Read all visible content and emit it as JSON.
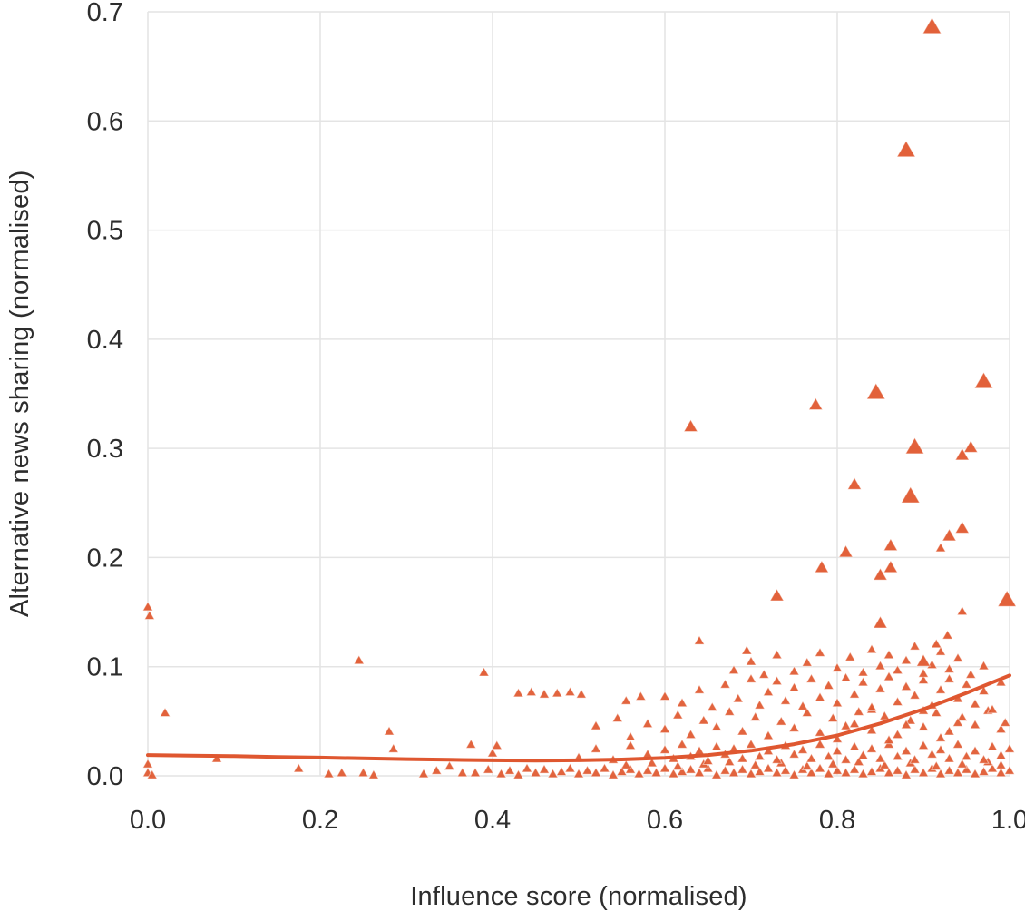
{
  "chart_data": {
    "type": "scatter",
    "title": "",
    "xlabel": "Influence score (normalised)",
    "ylabel": "Alternative news sharing (normalised)",
    "xlim": [
      0,
      1
    ],
    "ylim": [
      0,
      0.7
    ],
    "xticks": [
      0,
      0.2,
      0.4,
      0.6,
      0.8,
      1
    ],
    "xtick_labels": [
      "0.0",
      "0.2",
      "0.4",
      "0.6",
      "0.8",
      "1.0"
    ],
    "yticks": [
      0,
      0.1,
      0.2,
      0.3,
      0.4,
      0.5,
      0.6,
      0.7
    ],
    "ytick_labels": [
      "0.0",
      "0.1",
      "0.2",
      "0.3",
      "0.4",
      "0.5",
      "0.6",
      "0.7"
    ],
    "grid": true,
    "legend": false,
    "marker": "triangle-up",
    "colors": {
      "point": "#e0582f",
      "trend": "#df5730",
      "grid": "#e4e4e4",
      "text": "#2d2d2d",
      "background": "#ffffff"
    },
    "trend_line": {
      "points": [
        [
          0,
          0.019
        ],
        [
          0.05,
          0.0185
        ],
        [
          0.1,
          0.018
        ],
        [
          0.15,
          0.0173
        ],
        [
          0.2,
          0.0167
        ],
        [
          0.25,
          0.016
        ],
        [
          0.3,
          0.0153
        ],
        [
          0.35,
          0.0147
        ],
        [
          0.4,
          0.0142
        ],
        [
          0.45,
          0.014
        ],
        [
          0.5,
          0.0142
        ],
        [
          0.55,
          0.015
        ],
        [
          0.6,
          0.0165
        ],
        [
          0.65,
          0.019
        ],
        [
          0.7,
          0.023
        ],
        [
          0.75,
          0.029
        ],
        [
          0.8,
          0.037
        ],
        [
          0.85,
          0.048
        ],
        [
          0.9,
          0.061
        ],
        [
          0.95,
          0.076
        ],
        [
          1,
          0.092
        ]
      ]
    },
    "outliers": [
      [
        0.91,
        0.685,
        "l"
      ],
      [
        0.88,
        0.572,
        "l"
      ],
      [
        0.97,
        0.36,
        "l"
      ],
      [
        0.845,
        0.35,
        "l"
      ],
      [
        0.775,
        0.339,
        "m"
      ],
      [
        0.63,
        0.319,
        "m"
      ],
      [
        0.89,
        0.3,
        "l"
      ],
      [
        0.955,
        0.3,
        "m"
      ],
      [
        0.945,
        0.293,
        "m"
      ],
      [
        0.82,
        0.266,
        "m"
      ],
      [
        0.885,
        0.255,
        "l"
      ],
      [
        0.945,
        0.226,
        "m"
      ],
      [
        0.93,
        0.219,
        "m"
      ],
      [
        0.862,
        0.21,
        "m"
      ],
      [
        0.92,
        0.208,
        "s"
      ],
      [
        0.81,
        0.204,
        "m"
      ],
      [
        0.862,
        0.19,
        "m"
      ],
      [
        0.85,
        0.183,
        "m"
      ],
      [
        0.782,
        0.19,
        "m"
      ],
      [
        0.73,
        0.164,
        "m"
      ],
      [
        0.997,
        0.16,
        "l"
      ],
      [
        0.0,
        0.154,
        "s"
      ],
      [
        0.945,
        0.15,
        "s"
      ],
      [
        0.85,
        0.139,
        "m"
      ],
      [
        0.928,
        0.128,
        "s"
      ],
      [
        0.64,
        0.123,
        "s"
      ],
      [
        0.695,
        0.114,
        "s"
      ],
      [
        0.245,
        0.105,
        "s"
      ],
      [
        0.39,
        0.094,
        "s"
      ],
      [
        0.02,
        0.057,
        "s"
      ],
      [
        0.915,
        0.12,
        "s"
      ],
      [
        0.9,
        0.104,
        "m"
      ]
    ],
    "points": [
      [
        0.0,
        0.01
      ],
      [
        0.0,
        0.002
      ],
      [
        0.005,
        0.0
      ],
      [
        0.002,
        0.146
      ],
      [
        0.08,
        0.015
      ],
      [
        0.175,
        0.006
      ],
      [
        0.21,
        0.001
      ],
      [
        0.225,
        0.002
      ],
      [
        0.25,
        0.002
      ],
      [
        0.262,
        0.0
      ],
      [
        0.28,
        0.04
      ],
      [
        0.285,
        0.024
      ],
      [
        0.32,
        0.001
      ],
      [
        0.335,
        0.004
      ],
      [
        0.35,
        0.008
      ],
      [
        0.365,
        0.002
      ],
      [
        0.375,
        0.028
      ],
      [
        0.405,
        0.027
      ],
      [
        0.4,
        0.02
      ],
      [
        0.43,
        0.075
      ],
      [
        0.445,
        0.076
      ],
      [
        0.46,
        0.074
      ],
      [
        0.475,
        0.075
      ],
      [
        0.49,
        0.076
      ],
      [
        0.503,
        0.074
      ],
      [
        0.52,
        0.045
      ],
      [
        0.545,
        0.052
      ],
      [
        0.56,
        0.035
      ],
      [
        0.58,
        0.047
      ],
      [
        0.555,
        0.068
      ],
      [
        0.572,
        0.072
      ],
      [
        0.38,
        0.002
      ],
      [
        0.395,
        0.005
      ],
      [
        0.41,
        0.001
      ],
      [
        0.42,
        0.004
      ],
      [
        0.43,
        0.0
      ],
      [
        0.44,
        0.006
      ],
      [
        0.45,
        0.002
      ],
      [
        0.46,
        0.005
      ],
      [
        0.47,
        0.001
      ],
      [
        0.48,
        0.003
      ],
      [
        0.49,
        0.006
      ],
      [
        0.5,
        0.001
      ],
      [
        0.51,
        0.004
      ],
      [
        0.52,
        0.002
      ],
      [
        0.53,
        0.006
      ],
      [
        0.54,
        0.0
      ],
      [
        0.55,
        0.003
      ],
      [
        0.56,
        0.005
      ],
      [
        0.57,
        0.001
      ],
      [
        0.58,
        0.004
      ],
      [
        0.59,
        0.002
      ],
      [
        0.6,
        0.006
      ],
      [
        0.61,
        0.001
      ],
      [
        0.62,
        0.003
      ],
      [
        0.63,
        0.005
      ],
      [
        0.64,
        0.002
      ],
      [
        0.65,
        0.006
      ],
      [
        0.66,
        0.0
      ],
      [
        0.67,
        0.004
      ],
      [
        0.68,
        0.002
      ],
      [
        0.69,
        0.005
      ],
      [
        0.7,
        0.001
      ],
      [
        0.71,
        0.003
      ],
      [
        0.72,
        0.006
      ],
      [
        0.73,
        0.002
      ],
      [
        0.74,
        0.004
      ],
      [
        0.75,
        0.0
      ],
      [
        0.76,
        0.005
      ],
      [
        0.77,
        0.002
      ],
      [
        0.78,
        0.006
      ],
      [
        0.79,
        0.001
      ],
      [
        0.8,
        0.004
      ],
      [
        0.81,
        0.002
      ],
      [
        0.82,
        0.005
      ],
      [
        0.83,
        0.001
      ],
      [
        0.84,
        0.003
      ],
      [
        0.85,
        0.006
      ],
      [
        0.86,
        0.002
      ],
      [
        0.87,
        0.004
      ],
      [
        0.88,
        0.0
      ],
      [
        0.89,
        0.005
      ],
      [
        0.9,
        0.002
      ],
      [
        0.91,
        0.006
      ],
      [
        0.92,
        0.001
      ],
      [
        0.93,
        0.004
      ],
      [
        0.94,
        0.002
      ],
      [
        0.95,
        0.005
      ],
      [
        0.96,
        0.001
      ],
      [
        0.97,
        0.003
      ],
      [
        0.98,
        0.006
      ],
      [
        0.99,
        0.002
      ],
      [
        1.0,
        0.004
      ],
      [
        0.555,
        0.009
      ],
      [
        0.585,
        0.011
      ],
      [
        0.615,
        0.008
      ],
      [
        0.645,
        0.01
      ],
      [
        0.675,
        0.012
      ],
      [
        0.705,
        0.009
      ],
      [
        0.735,
        0.011
      ],
      [
        0.765,
        0.008
      ],
      [
        0.795,
        0.01
      ],
      [
        0.825,
        0.012
      ],
      [
        0.855,
        0.009
      ],
      [
        0.885,
        0.011
      ],
      [
        0.915,
        0.008
      ],
      [
        0.945,
        0.01
      ],
      [
        0.975,
        0.012
      ],
      [
        0.99,
        0.009
      ],
      [
        0.5,
        0.016
      ],
      [
        0.52,
        0.024
      ],
      [
        0.54,
        0.014
      ],
      [
        0.56,
        0.027
      ],
      [
        0.58,
        0.019
      ],
      [
        0.6,
        0.023
      ],
      [
        0.61,
        0.015
      ],
      [
        0.62,
        0.028
      ],
      [
        0.63,
        0.017
      ],
      [
        0.64,
        0.022
      ],
      [
        0.65,
        0.013
      ],
      [
        0.66,
        0.026
      ],
      [
        0.67,
        0.019
      ],
      [
        0.68,
        0.024
      ],
      [
        0.69,
        0.015
      ],
      [
        0.7,
        0.028
      ],
      [
        0.71,
        0.017
      ],
      [
        0.72,
        0.022
      ],
      [
        0.73,
        0.014
      ],
      [
        0.74,
        0.027
      ],
      [
        0.75,
        0.019
      ],
      [
        0.76,
        0.023
      ],
      [
        0.77,
        0.015
      ],
      [
        0.78,
        0.028
      ],
      [
        0.79,
        0.017
      ],
      [
        0.8,
        0.022
      ],
      [
        0.81,
        0.014
      ],
      [
        0.82,
        0.026
      ],
      [
        0.83,
        0.018
      ],
      [
        0.84,
        0.024
      ],
      [
        0.85,
        0.015
      ],
      [
        0.86,
        0.028
      ],
      [
        0.87,
        0.017
      ],
      [
        0.88,
        0.022
      ],
      [
        0.89,
        0.014
      ],
      [
        0.9,
        0.027
      ],
      [
        0.91,
        0.019
      ],
      [
        0.92,
        0.023
      ],
      [
        0.93,
        0.015
      ],
      [
        0.94,
        0.028
      ],
      [
        0.95,
        0.017
      ],
      [
        0.96,
        0.022
      ],
      [
        0.97,
        0.014
      ],
      [
        0.98,
        0.026
      ],
      [
        0.99,
        0.018
      ],
      [
        1.0,
        0.024
      ],
      [
        0.6,
        0.042
      ],
      [
        0.615,
        0.055
      ],
      [
        0.63,
        0.037
      ],
      [
        0.645,
        0.05
      ],
      [
        0.66,
        0.044
      ],
      [
        0.675,
        0.058
      ],
      [
        0.69,
        0.04
      ],
      [
        0.705,
        0.053
      ],
      [
        0.72,
        0.036
      ],
      [
        0.735,
        0.049
      ],
      [
        0.75,
        0.043
      ],
      [
        0.765,
        0.057
      ],
      [
        0.78,
        0.039
      ],
      [
        0.795,
        0.052
      ],
      [
        0.81,
        0.045
      ],
      [
        0.825,
        0.058
      ],
      [
        0.84,
        0.041
      ],
      [
        0.855,
        0.054
      ],
      [
        0.87,
        0.037
      ],
      [
        0.885,
        0.05
      ],
      [
        0.9,
        0.044
      ],
      [
        0.915,
        0.057
      ],
      [
        0.93,
        0.04
      ],
      [
        0.945,
        0.053
      ],
      [
        0.96,
        0.046
      ],
      [
        0.975,
        0.059
      ],
      [
        0.99,
        0.042
      ],
      [
        0.995,
        0.048
      ],
      [
        0.8,
        0.033
      ],
      [
        0.82,
        0.047
      ],
      [
        0.84,
        0.06
      ],
      [
        0.86,
        0.032
      ],
      [
        0.88,
        0.046
      ],
      [
        0.9,
        0.059
      ],
      [
        0.92,
        0.034
      ],
      [
        0.94,
        0.048
      ],
      [
        0.6,
        0.072
      ],
      [
        0.62,
        0.066
      ],
      [
        0.64,
        0.078
      ],
      [
        0.655,
        0.062
      ],
      [
        0.67,
        0.083
      ],
      [
        0.685,
        0.07
      ],
      [
        0.7,
        0.088
      ],
      [
        0.71,
        0.064
      ],
      [
        0.72,
        0.076
      ],
      [
        0.73,
        0.086
      ],
      [
        0.74,
        0.068
      ],
      [
        0.75,
        0.08
      ],
      [
        0.76,
        0.063
      ],
      [
        0.77,
        0.088
      ],
      [
        0.78,
        0.071
      ],
      [
        0.79,
        0.082
      ],
      [
        0.8,
        0.066
      ],
      [
        0.81,
        0.089
      ],
      [
        0.82,
        0.074
      ],
      [
        0.83,
        0.085
      ],
      [
        0.84,
        0.062
      ],
      [
        0.85,
        0.079
      ],
      [
        0.86,
        0.09
      ],
      [
        0.87,
        0.067
      ],
      [
        0.88,
        0.081
      ],
      [
        0.89,
        0.073
      ],
      [
        0.9,
        0.087
      ],
      [
        0.91,
        0.064
      ],
      [
        0.92,
        0.078
      ],
      [
        0.93,
        0.088
      ],
      [
        0.94,
        0.07
      ],
      [
        0.95,
        0.083
      ],
      [
        0.96,
        0.065
      ],
      [
        0.97,
        0.077
      ],
      [
        0.98,
        0.06
      ],
      [
        0.99,
        0.085
      ],
      [
        0.68,
        0.096
      ],
      [
        0.7,
        0.104
      ],
      [
        0.715,
        0.092
      ],
      [
        0.73,
        0.11
      ],
      [
        0.75,
        0.095
      ],
      [
        0.765,
        0.103
      ],
      [
        0.78,
        0.112
      ],
      [
        0.8,
        0.098
      ],
      [
        0.815,
        0.108
      ],
      [
        0.83,
        0.094
      ],
      [
        0.84,
        0.115
      ],
      [
        0.85,
        0.1
      ],
      [
        0.86,
        0.11
      ],
      [
        0.87,
        0.096
      ],
      [
        0.88,
        0.105
      ],
      [
        0.89,
        0.118
      ],
      [
        0.9,
        0.093
      ],
      [
        0.91,
        0.101
      ],
      [
        0.92,
        0.113
      ],
      [
        0.93,
        0.097
      ],
      [
        0.94,
        0.107
      ],
      [
        0.955,
        0.092
      ],
      [
        0.97,
        0.1
      ]
    ]
  }
}
